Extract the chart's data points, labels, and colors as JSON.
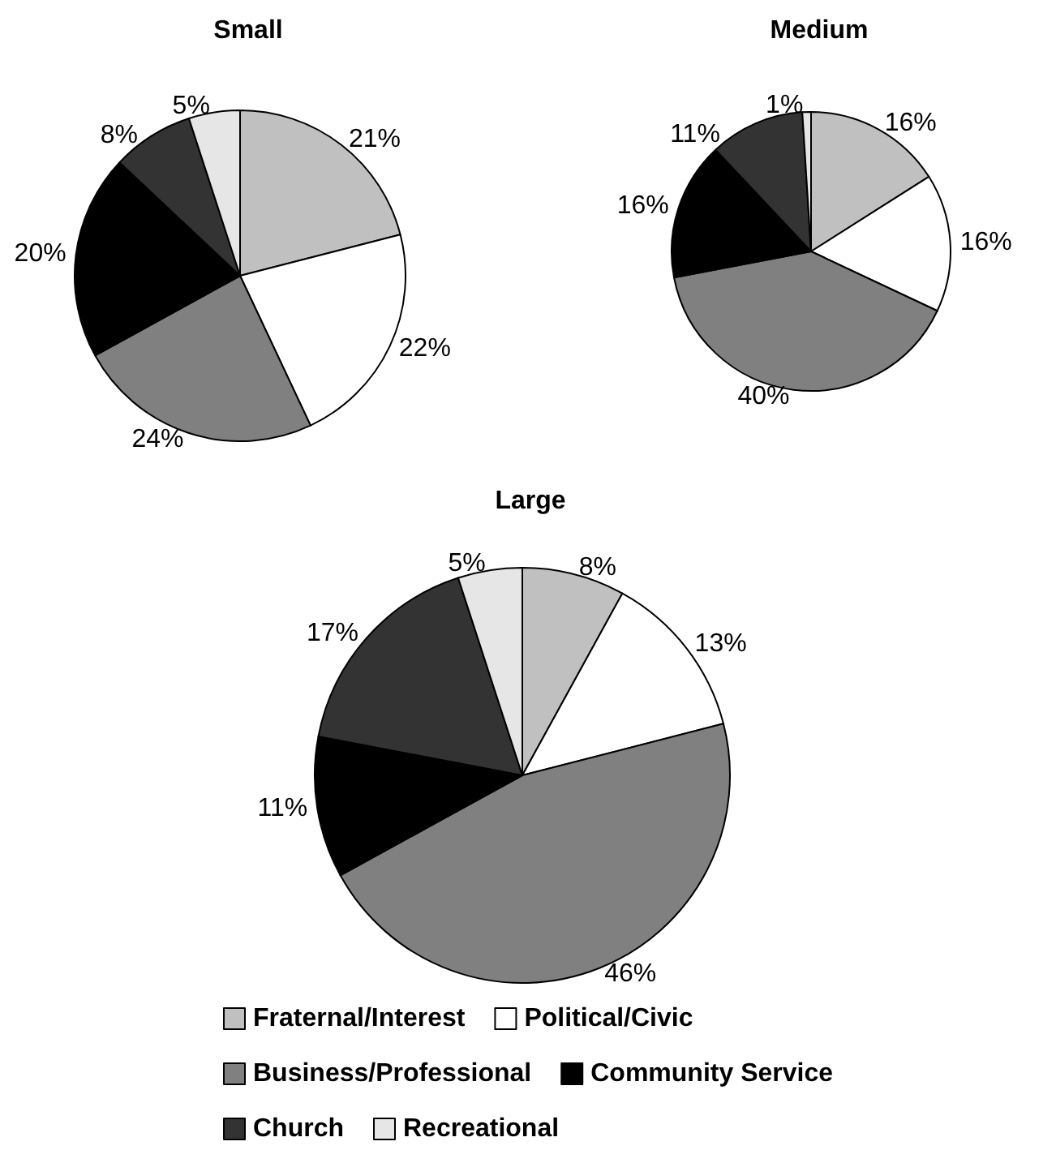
{
  "chart_data": [
    {
      "type": "pie",
      "title": "Small",
      "categories": [
        null,
        null,
        null,
        null,
        null,
        null
      ],
      "values": [
        21,
        22,
        24,
        20,
        8,
        5
      ],
      "value_labels": [
        "21%",
        "22%",
        "24%",
        "20%",
        "8%",
        "5%"
      ],
      "colors": [
        "#c0c0c0",
        "#ffffff",
        "#808080",
        "#000000",
        "#333333",
        "#e6e6e6"
      ],
      "legend": false
    },
    {
      "type": "pie",
      "title": "Medium",
      "categories": [
        null,
        null,
        null,
        null,
        null,
        null
      ],
      "values": [
        16,
        16,
        40,
        16,
        11,
        1
      ],
      "value_labels": [
        "16%",
        "16%",
        "40%",
        "16%",
        "11%",
        "1%"
      ],
      "colors": [
        "#c0c0c0",
        "#ffffff",
        "#808080",
        "#000000",
        "#333333",
        "#e6e6e6"
      ],
      "legend": false
    },
    {
      "type": "pie",
      "title": "Large",
      "categories": [
        "Fraternal/Interest",
        "Political/Civic",
        "Business/Professional",
        "Community Service",
        "Church",
        "Recreational"
      ],
      "values": [
        8,
        13,
        46,
        11,
        17,
        5
      ],
      "value_labels": [
        "8%",
        "13%",
        "46%",
        "11%",
        "17%",
        "5%"
      ],
      "colors": [
        "#c0c0c0",
        "#ffffff",
        "#808080",
        "#000000",
        "#333333",
        "#e6e6e6"
      ],
      "legend": "bottom"
    }
  ]
}
